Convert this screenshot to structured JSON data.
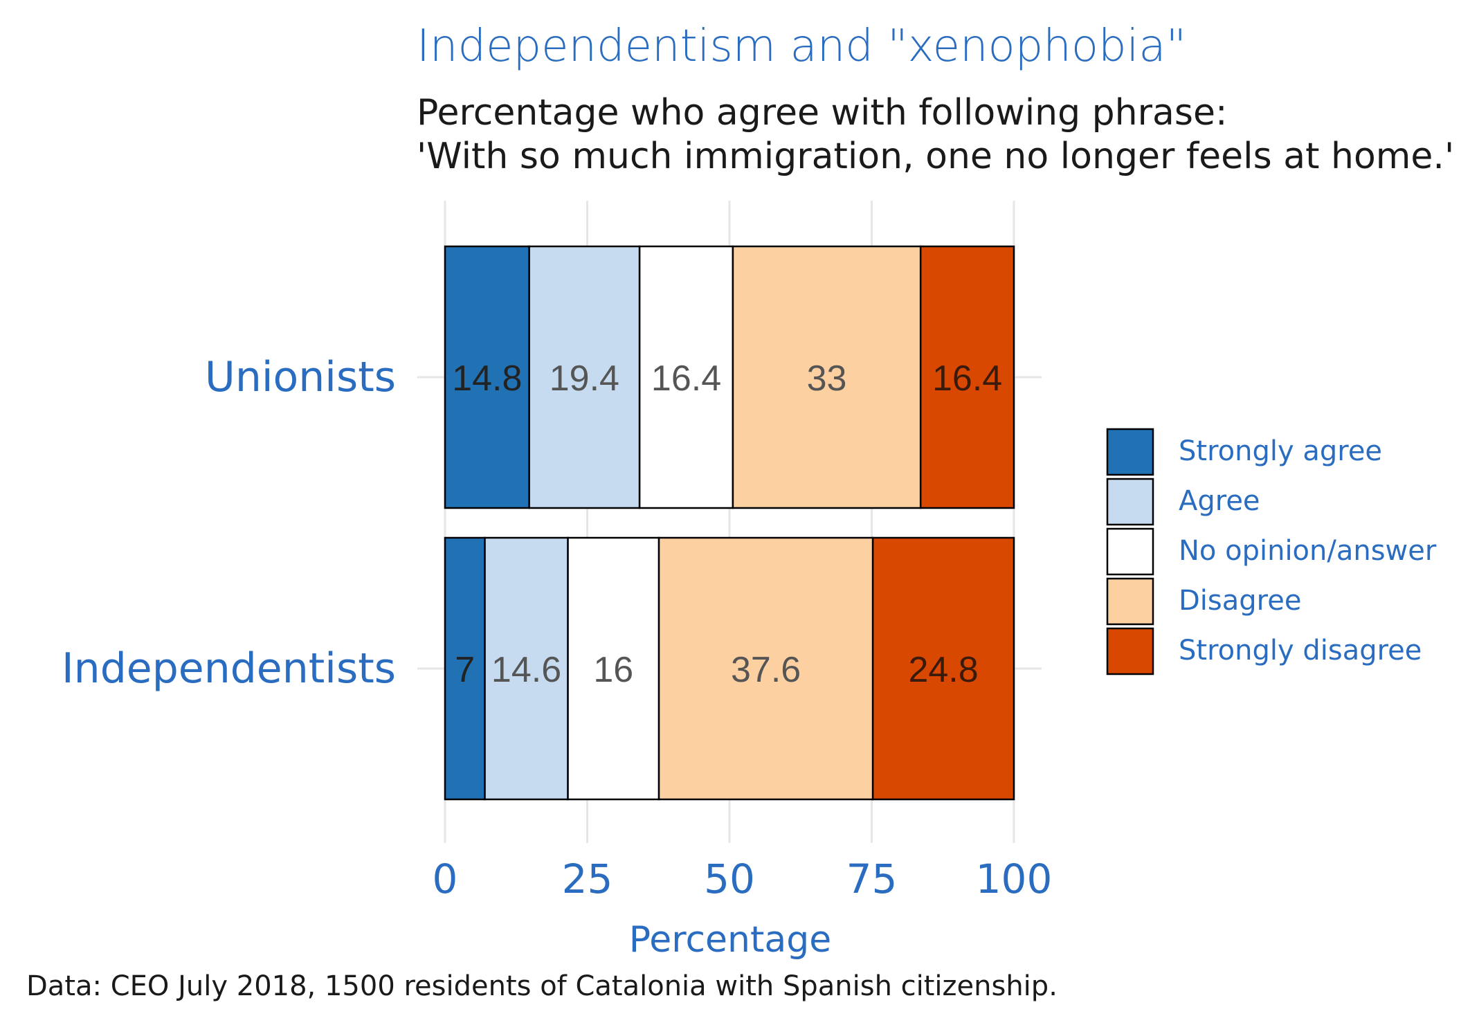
{
  "chart_data": {
    "type": "bar",
    "orientation": "horizontal",
    "stacked": true,
    "title": "Independentism and \"xenophobia\"",
    "subtitle_lines": [
      "Percentage who agree with following phrase:",
      "'With so much immigration, one no longer feels at home.'"
    ],
    "categories": [
      "Unionists",
      "Independentists"
    ],
    "series": [
      {
        "name": "Strongly agree",
        "color": "#2171b5",
        "label_color": "#222222",
        "values": [
          14.8,
          7
        ]
      },
      {
        "name": "Agree",
        "color": "#c6dbef",
        "label_color": "#555555",
        "values": [
          19.4,
          14.6
        ]
      },
      {
        "name": "No opinion/answer",
        "color": "#ffffff",
        "label_color": "#555555",
        "values": [
          16.4,
          16
        ]
      },
      {
        "name": "Disagree",
        "color": "#fdd0a2",
        "label_color": "#555555",
        "values": [
          33,
          37.6
        ]
      },
      {
        "name": "Strongly disagree",
        "color": "#d94801",
        "label_color": "#3a1a0a",
        "values": [
          16.4,
          24.8
        ]
      }
    ],
    "xlabel": "Percentage",
    "ylabel": "",
    "xlim": [
      0,
      100
    ],
    "xticks": [
      "0",
      "25",
      "50",
      "75",
      "100"
    ],
    "grid": true,
    "legend_position": "right",
    "caption": "Data: CEO July 2018, 1500 residents of Catalonia with Spanish citizenship."
  }
}
